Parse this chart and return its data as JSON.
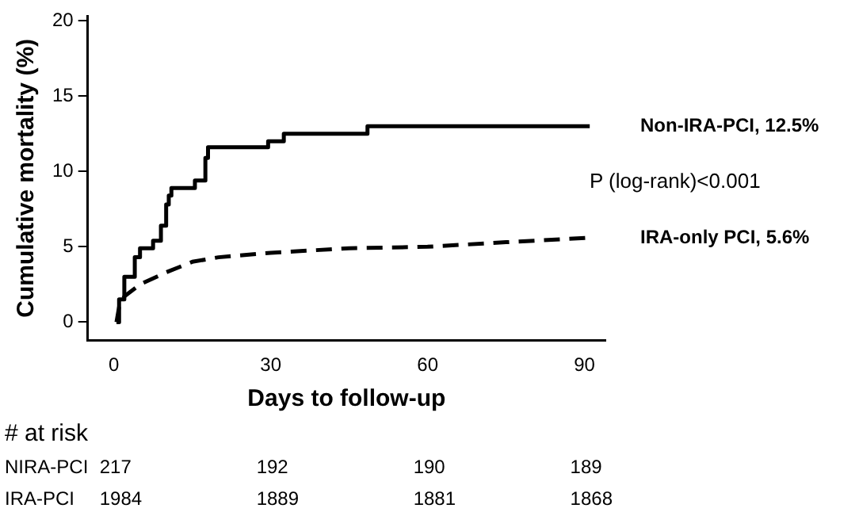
{
  "chart_data": {
    "type": "line",
    "xlabel": "Days to follow-up",
    "ylabel": "Cumulative mortality (%)",
    "xlim": [
      -5,
      94
    ],
    "ylim": [
      -1.2,
      20.3
    ],
    "xticks": [
      0,
      30,
      60,
      90
    ],
    "yticks": [
      0,
      5,
      10,
      15,
      20
    ],
    "grid": false,
    "legend": false,
    "marker": "none",
    "series": [
      {
        "name": "Non-IRA-PCI, 12.5%",
        "type": "step",
        "color": "#000000",
        "line_style": "solid",
        "x": [
          0.5,
          1,
          2,
          3.5,
          4,
          5,
          7.5,
          9,
          10,
          10.5,
          11,
          15.5,
          17.5,
          18,
          29.5,
          32.5,
          48.5,
          91
        ],
        "values": [
          0,
          1.5,
          3,
          3,
          4.3,
          4.9,
          5.4,
          6.4,
          7.8,
          8.4,
          8.9,
          9.4,
          10.9,
          11.6,
          12,
          12.5,
          13,
          13
        ]
      },
      {
        "name": "IRA-only PCI, 5.6%",
        "type": "line",
        "color": "#000000",
        "line_style": "dashed",
        "x": [
          0.5,
          1,
          2,
          5,
          10,
          15,
          20,
          30,
          45,
          60,
          75,
          91
        ],
        "values": [
          0,
          1,
          1.7,
          2.5,
          3.3,
          4,
          4.3,
          4.6,
          4.9,
          5,
          5.3,
          5.6
        ]
      }
    ],
    "annotations": [
      "P (log-rank)<0.001",
      "# at risk",
      "NIRA-PCI",
      "217",
      "192",
      "190",
      "189",
      "IRA-PCI",
      "1984",
      "1889",
      "1881",
      "1868"
    ]
  }
}
